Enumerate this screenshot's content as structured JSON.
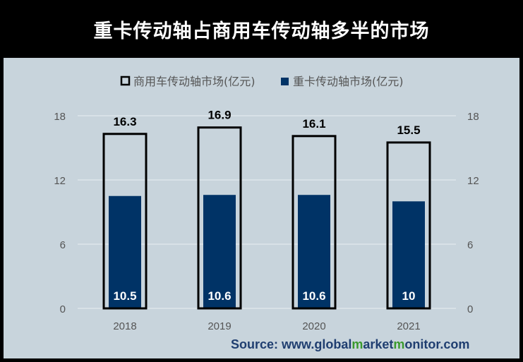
{
  "title": "重卡传动轴占商用车传动轴多半的市场",
  "source": {
    "prefix": "Source: www.",
    "part1": "global",
    "m1": "m",
    "part2": "arket",
    "m2": "m",
    "part3": "onitor.com"
  },
  "colors": {
    "outline_bar": "#000000",
    "filled_bar": "#003366",
    "panel": "#c8d4dc",
    "title_bg": "#000000"
  },
  "chart_data": {
    "type": "bar",
    "categories": [
      "2018",
      "2019",
      "2020",
      "2021"
    ],
    "series": [
      {
        "name": "商用车传动轴市场(亿元)",
        "values": [
          16.3,
          16.9,
          16.1,
          15.5
        ],
        "style": "outline",
        "color": "#000000"
      },
      {
        "name": "重卡传动轴市场(亿元)",
        "values": [
          10.5,
          10.6,
          10.6,
          10
        ],
        "style": "filled",
        "color": "#003366"
      }
    ],
    "value_labels": {
      "outline": [
        "16.3",
        "16.9",
        "16.1",
        "15.5"
      ],
      "filled": [
        "10.5",
        "10.6",
        "10.6",
        "10"
      ]
    },
    "yticks": [
      0,
      6,
      12,
      18
    ],
    "ytick_labels": [
      "0",
      "6",
      "12",
      "18"
    ],
    "ylim": [
      0,
      18
    ],
    "axes": "left and right",
    "grid": true,
    "legend": "top"
  }
}
